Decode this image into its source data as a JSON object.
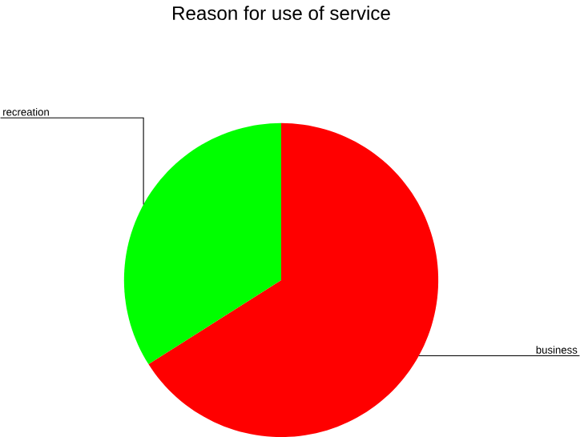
{
  "chart_data": {
    "type": "pie",
    "title": "Reason for use of service",
    "categories": [
      "business",
      "recreation"
    ],
    "values": [
      66,
      34
    ],
    "colors": [
      "#ff0000",
      "#00ff00"
    ]
  }
}
